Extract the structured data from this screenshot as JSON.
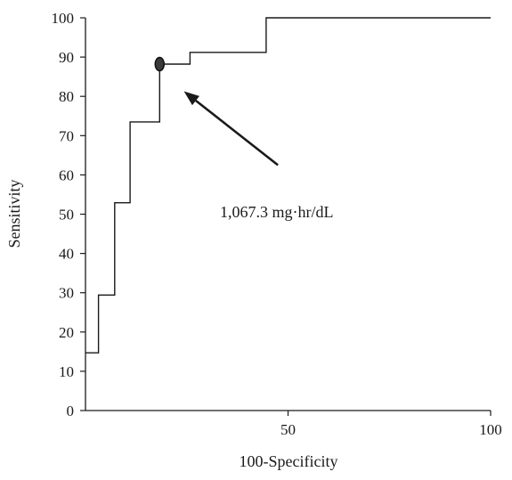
{
  "chart_data": {
    "type": "line",
    "subtype": "step",
    "title": "",
    "xlabel": "100-Specificity",
    "ylabel": "Sensitivity",
    "xlim": [
      0,
      100
    ],
    "ylim": [
      0,
      100
    ],
    "xticks": [
      50,
      100
    ],
    "yticks": [
      0,
      10,
      20,
      30,
      40,
      50,
      60,
      70,
      80,
      90,
      100
    ],
    "grid": false,
    "legend": "none",
    "line_color": "#1a1a1a",
    "series": [
      {
        "points": [
          [
            0,
            14.7
          ],
          [
            3.2,
            14.7
          ],
          [
            3.2,
            29.4
          ],
          [
            7.2,
            29.4
          ],
          [
            7.2,
            52.9
          ],
          [
            11,
            52.9
          ],
          [
            11,
            73.5
          ],
          [
            18.3,
            73.5
          ],
          [
            18.3,
            88.2
          ],
          [
            25.8,
            88.2
          ],
          [
            25.8,
            91.2
          ],
          [
            44.6,
            91.2
          ],
          [
            44.6,
            100
          ],
          [
            100,
            100
          ]
        ]
      }
    ],
    "highlight_point": {
      "x": 18.3,
      "y": 88.2,
      "color": "#3a3a3a"
    },
    "annotation": {
      "text": "1,067.3 mg·hr/dL",
      "arrow_from": [
        47.5,
        62.5
      ],
      "arrow_to": [
        24.3,
        81.3
      ]
    }
  }
}
